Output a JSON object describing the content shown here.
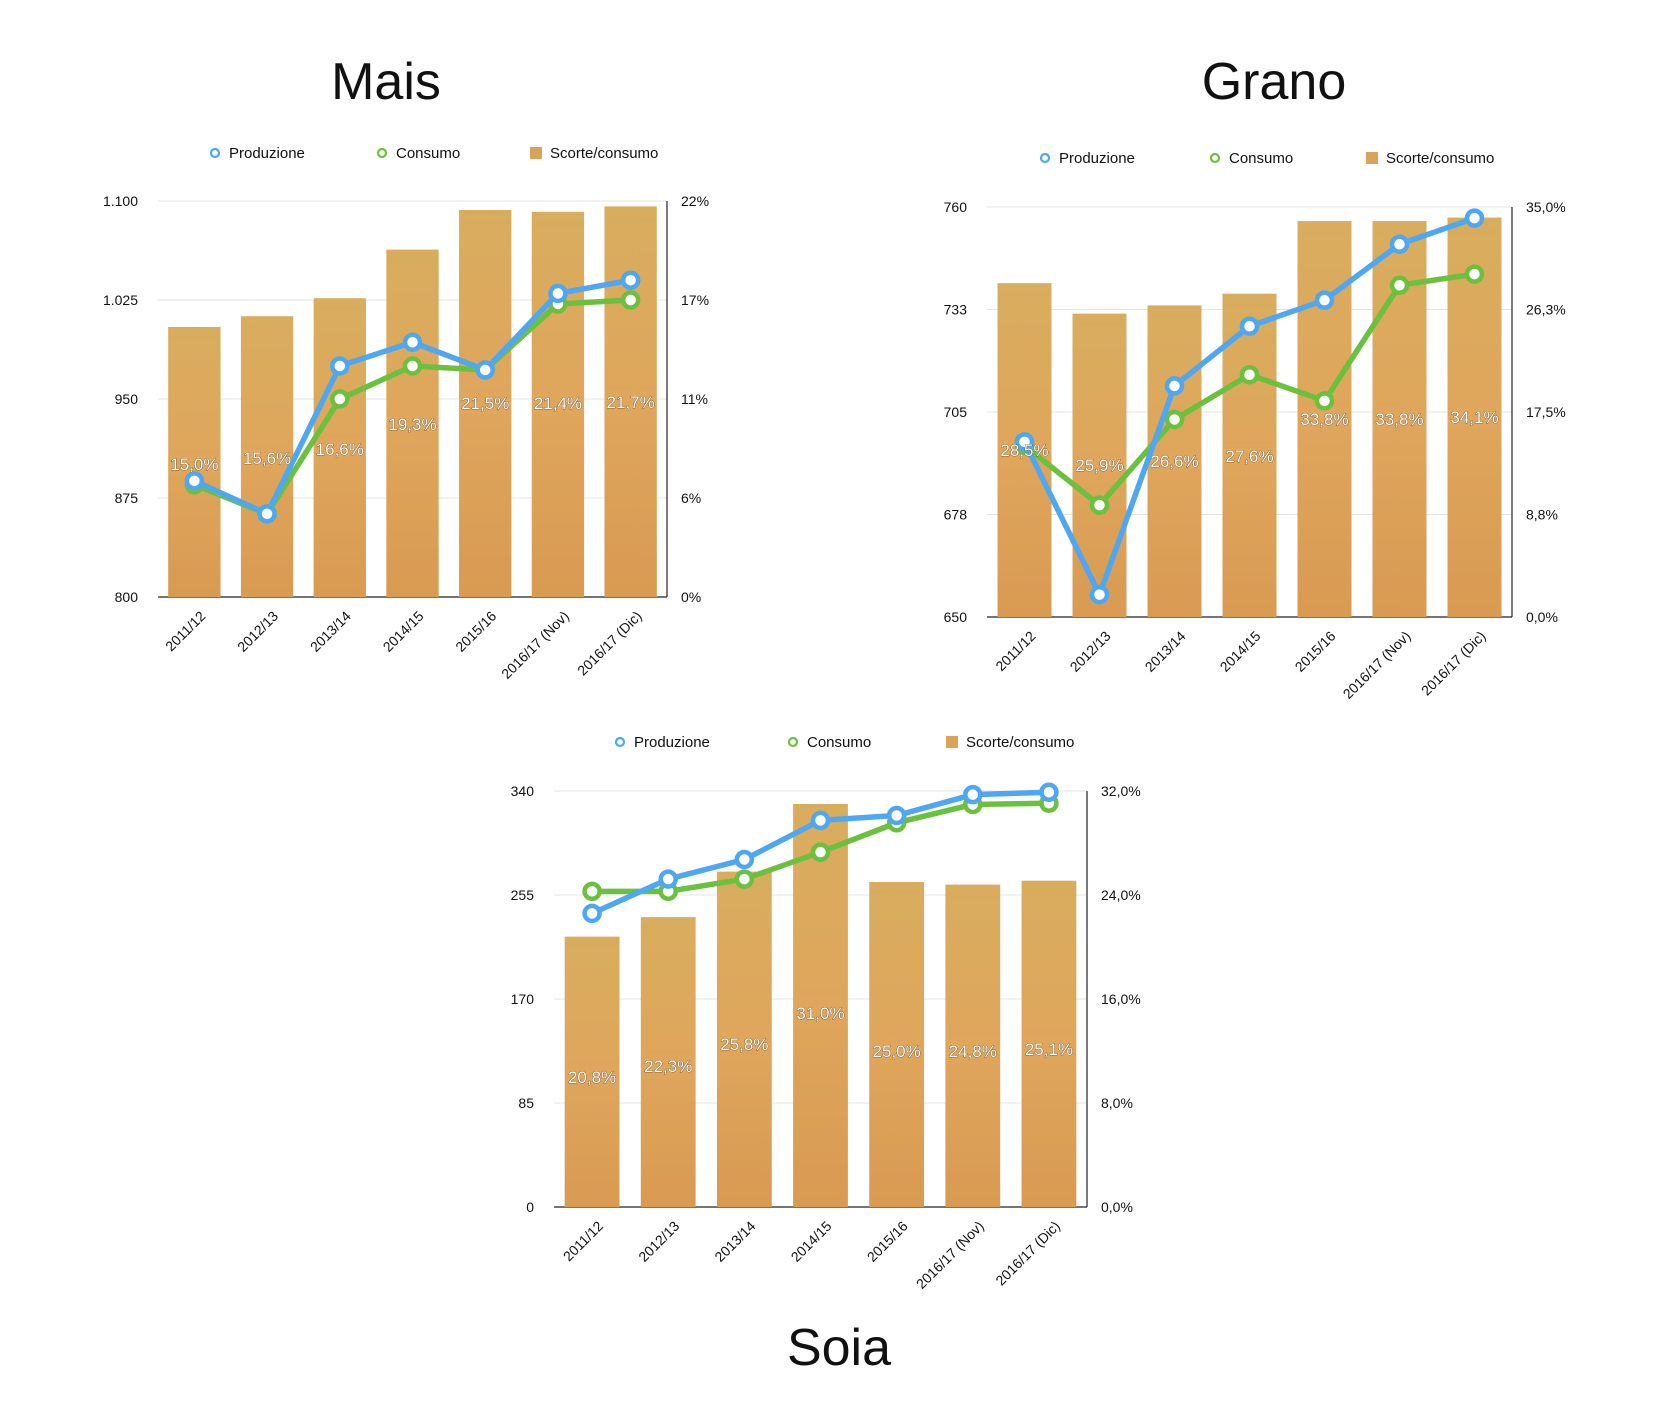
{
  "colors": {
    "produzione": "#4ea7f0",
    "consumo": "#6cc040",
    "bar": "#dba85a",
    "bar_dark": "#c9924a"
  },
  "chart_data": [
    {
      "type": "bar",
      "title": "Mais",
      "categories": [
        "2011/12",
        "2012/13",
        "2013/14",
        "2014/15",
        "2015/16",
        "2016/17 (Nov)",
        "2016/17 (Dic)"
      ],
      "legend": [
        "Produzione",
        "Consumo",
        "Scorte/consumo"
      ],
      "left_ticks": [
        "800",
        "875",
        "950",
        "1.025",
        "1.100"
      ],
      "right_ticks": [
        "0%",
        "6%",
        "11%",
        "17%",
        "22%"
      ],
      "ylim_left": [
        800,
        1100
      ],
      "ylim_right": [
        0,
        22
      ],
      "series": [
        {
          "name": "Scorte/consumo",
          "kind": "bar",
          "axis": "right",
          "values": [
            15.0,
            15.6,
            16.6,
            19.3,
            21.5,
            21.4,
            21.7
          ],
          "labels": [
            "15,0%",
            "15,6%",
            "16,6%",
            "19,3%",
            "21,5%",
            "21,4%",
            "21,7%"
          ]
        },
        {
          "name": "Produzione",
          "kind": "line",
          "axis": "left",
          "values": [
            888,
            863,
            975,
            993,
            972,
            1030,
            1040
          ]
        },
        {
          "name": "Consumo",
          "kind": "line",
          "axis": "left",
          "values": [
            885,
            863,
            950,
            975,
            972,
            1022,
            1025
          ]
        }
      ]
    },
    {
      "type": "bar",
      "title": "Grano",
      "categories": [
        "2011/12",
        "2012/13",
        "2013/14",
        "2014/15",
        "2015/16",
        "2016/17 (Nov)",
        "2016/17 (Dic)"
      ],
      "legend": [
        "Produzione",
        "Consumo",
        "Scorte/consumo"
      ],
      "left_ticks": [
        "650",
        "678",
        "705",
        "733",
        "760"
      ],
      "right_ticks": [
        "0,0%",
        "8,8%",
        "17,5%",
        "26,3%",
        "35,0%"
      ],
      "ylim_left": [
        650,
        760
      ],
      "ylim_right": [
        0,
        35
      ],
      "series": [
        {
          "name": "Scorte/consumo",
          "kind": "bar",
          "axis": "right",
          "values": [
            28.5,
            25.9,
            26.6,
            27.6,
            33.8,
            33.8,
            34.1
          ],
          "labels": [
            "28,5%",
            "25,9%",
            "26,6%",
            "27,6%",
            "33,8%",
            "33,8%",
            "34,1%"
          ]
        },
        {
          "name": "Produzione",
          "kind": "line",
          "axis": "left",
          "values": [
            697,
            656,
            712,
            728,
            735,
            750,
            757
          ]
        },
        {
          "name": "Consumo",
          "kind": "line",
          "axis": "left",
          "values": [
            696,
            680,
            703,
            715,
            708,
            739,
            742
          ]
        }
      ]
    },
    {
      "type": "bar",
      "title": "Soia",
      "categories": [
        "2011/12",
        "2012/13",
        "2013/14",
        "2014/15",
        "2015/16",
        "2016/17 (Nov)",
        "2016/17 (Dic)"
      ],
      "legend": [
        "Produzione",
        "Consumo",
        "Scorte/consumo"
      ],
      "left_ticks": [
        "0",
        "85",
        "170",
        "255",
        "340"
      ],
      "right_ticks": [
        "0,0%",
        "8,0%",
        "16,0%",
        "24,0%",
        "32,0%"
      ],
      "ylim_left": [
        0,
        340
      ],
      "ylim_right": [
        0,
        32
      ],
      "series": [
        {
          "name": "Scorte/consumo",
          "kind": "bar",
          "axis": "right",
          "values": [
            20.8,
            22.3,
            25.8,
            31.0,
            25.0,
            24.8,
            25.1
          ],
          "labels": [
            "20,8%",
            "22,3%",
            "25,8%",
            "31,0%",
            "25,0%",
            "24,8%",
            "25,1%"
          ]
        },
        {
          "name": "Produzione",
          "kind": "line",
          "axis": "left",
          "values": [
            240,
            268,
            284,
            316,
            320,
            337,
            339
          ]
        },
        {
          "name": "Consumo",
          "kind": "line",
          "axis": "left",
          "values": [
            258,
            258,
            268,
            290,
            314,
            329,
            330
          ]
        }
      ]
    }
  ]
}
